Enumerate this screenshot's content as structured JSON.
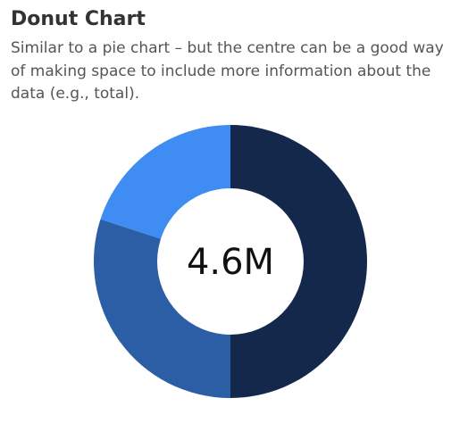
{
  "title": "Donut Chart",
  "subtitle": "Similar to a pie chart – but the centre can be a good way of making space to include more information about the data (e.g., total).",
  "chart_data": {
    "type": "pie",
    "donut": true,
    "center_label": "4.6M",
    "series": [
      {
        "value": 50,
        "color": "#13284a"
      },
      {
        "value": 30,
        "color": "#2c5ea6"
      },
      {
        "value": 20,
        "color": "#3f8cf2"
      }
    ]
  }
}
